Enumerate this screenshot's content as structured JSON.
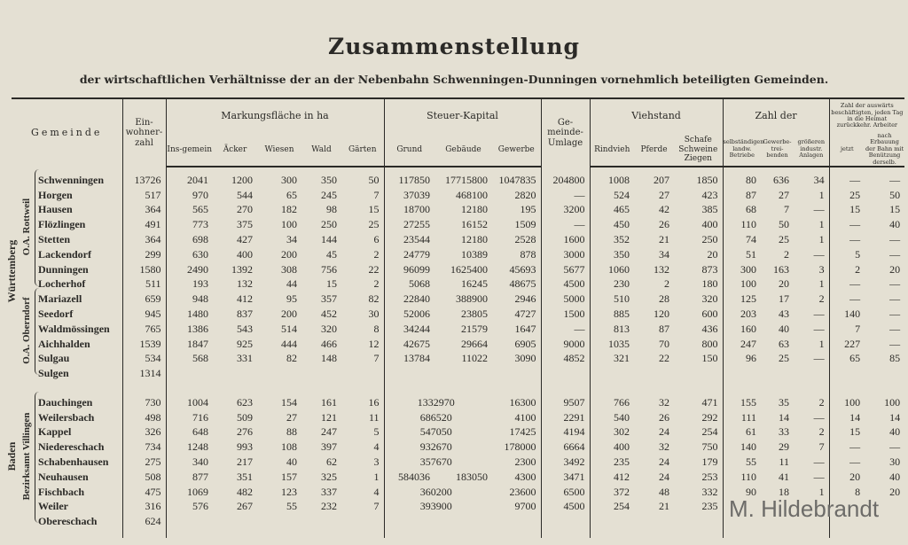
{
  "title": "Zusammenstellung",
  "subtitle": "der wirtschaftlichen Verhältnisse der an der Nebenbahn Schwenningen-Dunningen vornehmlich beteiligten Gemeinden.",
  "headers": {
    "gemeinde": "Gemeinde",
    "einwohner": "Ein-wohner-zahl",
    "markung": "Markungsfläche in ha",
    "insgemein": "Ins-gemein",
    "aecker": "Äcker",
    "wiesen": "Wiesen",
    "wald": "Wald",
    "gaerten": "Gärten",
    "steuer": "Steuer-Kapital",
    "grund": "Grund",
    "gebaeude": "Gebäude",
    "gewerbe": "Gewerbe",
    "umlage": "Ge-meinde-Umlage",
    "viehstand": "Viehstand",
    "rindvieh": "Rindvieh",
    "pferde": "Pferde",
    "schafe": "Schafe Schweine Ziegen",
    "zahl_der": "Zahl der",
    "selbst_landw": "selbständigen landw. Betriebe",
    "gewerbetreibenden": "Gewerbe-trei-benden",
    "anlagen": "größeren industr. Anlagen",
    "auswaerts": "Zahl der auswärts beschäftigten, jeden Tag in die Heimat zurückkehr. Arbeiter",
    "jetzt": "jetzt",
    "nach_bahn": "nach Erbauung der Bahn mit Benützung derselb."
  },
  "groups": {
    "wuerttemberg": "Württemberg",
    "oa_rottweil": "O.A. Rottweil",
    "oa_oberndorf": "O.A. Oberndorf",
    "baden": "Baden",
    "bezirksamt_villingen": "Bezirksamt Villingen"
  },
  "wuerttemberg_rows": [
    [
      "Schwenningen",
      "13726",
      "2041",
      "1200",
      "300",
      "350",
      "50",
      "117850",
      "17715800",
      "1047835",
      "204800",
      "1008",
      "207",
      "1850",
      "80",
      "636",
      "34",
      "—",
      "—"
    ],
    [
      "Horgen",
      "517",
      "970",
      "544",
      "65",
      "245",
      "7",
      "37039",
      "468100",
      "2820",
      "—",
      "524",
      "27",
      "423",
      "87",
      "27",
      "1",
      "25",
      "50"
    ],
    [
      "Hausen",
      "364",
      "565",
      "270",
      "182",
      "98",
      "15",
      "18700",
      "12180",
      "195",
      "3200",
      "465",
      "42",
      "385",
      "68",
      "7",
      "—",
      "15",
      "15"
    ],
    [
      "Flözlingen",
      "491",
      "773",
      "375",
      "100",
      "250",
      "25",
      "27255",
      "16152",
      "1509",
      "—",
      "450",
      "26",
      "400",
      "110",
      "50",
      "1",
      "—",
      "40"
    ],
    [
      "Stetten",
      "364",
      "698",
      "427",
      "34",
      "144",
      "6",
      "23544",
      "12180",
      "2528",
      "1600",
      "352",
      "21",
      "250",
      "74",
      "25",
      "1",
      "—",
      "—"
    ],
    [
      "Lackendorf",
      "299",
      "630",
      "400",
      "200",
      "45",
      "2",
      "24779",
      "10389",
      "878",
      "3000",
      "350",
      "34",
      "20",
      "51",
      "2",
      "—",
      "5",
      "—"
    ],
    [
      "Dunningen",
      "1580",
      "2490",
      "1392",
      "308",
      "756",
      "22",
      "96099",
      "1625400",
      "45693",
      "5677",
      "1060",
      "132",
      "873",
      "300",
      "163",
      "3",
      "2",
      "20"
    ],
    [
      "Locherhof",
      "511",
      "193",
      "132",
      "44",
      "15",
      "2",
      "5068",
      "16245",
      "48675",
      "4500",
      "230",
      "2",
      "180",
      "100",
      "20",
      "1",
      "—",
      "—"
    ],
    [
      "Mariazell",
      "659",
      "948",
      "412",
      "95",
      "357",
      "82",
      "22840",
      "388900",
      "2946",
      "5000",
      "510",
      "28",
      "320",
      "125",
      "17",
      "2",
      "—",
      "—"
    ],
    [
      "Seedorf",
      "945",
      "1480",
      "837",
      "200",
      "452",
      "30",
      "52006",
      "23805",
      "4727",
      "1500",
      "885",
      "120",
      "600",
      "203",
      "43",
      "—",
      "140",
      "—"
    ],
    [
      "Waldmössingen",
      "765",
      "1386",
      "543",
      "514",
      "320",
      "8",
      "34244",
      "21579",
      "1647",
      "—",
      "813",
      "87",
      "436",
      "160",
      "40",
      "—",
      "7",
      "—"
    ],
    [
      "Aichhalden",
      "1539",
      "1847",
      "925",
      "444",
      "466",
      "12",
      "42675",
      "29664",
      "6905",
      "9000",
      "1035",
      "70",
      "800",
      "247",
      "63",
      "1",
      "227",
      "—"
    ],
    [
      "Sulgau",
      "534",
      "568",
      "331",
      "82",
      "148",
      "7",
      "13784",
      "11022",
      "3090",
      "4852",
      "321",
      "22",
      "150",
      "96",
      "25",
      "—",
      "65",
      "85"
    ],
    [
      "Sulgen",
      "1314",
      "",
      "",
      "",
      "",
      "",
      "",
      "",
      "",
      "",
      "",
      "",
      "",
      "",
      "",
      "",
      "",
      ""
    ]
  ],
  "baden_rows": [
    [
      "Dauchingen",
      "730",
      "1004",
      "623",
      "154",
      "161",
      "16",
      null,
      "1332970",
      "16300",
      "9507",
      "766",
      "32",
      "471",
      "155",
      "35",
      "2",
      "100",
      "100"
    ],
    [
      "Weilersbach",
      "498",
      "716",
      "509",
      "27",
      "121",
      "11",
      null,
      "686520",
      "4100",
      "2291",
      "540",
      "26",
      "292",
      "111",
      "14",
      "—",
      "14",
      "14"
    ],
    [
      "Kappel",
      "326",
      "648",
      "276",
      "88",
      "247",
      "5",
      null,
      "547050",
      "17425",
      "4194",
      "302",
      "24",
      "254",
      "61",
      "33",
      "2",
      "15",
      "40"
    ],
    [
      "Niedereschach",
      "734",
      "1248",
      "993",
      "108",
      "397",
      "4",
      null,
      "932670",
      "178000",
      "6664",
      "400",
      "32",
      "750",
      "140",
      "29",
      "7",
      "—",
      "—"
    ],
    [
      "Schabenhausen",
      "275",
      "340",
      "217",
      "40",
      "62",
      "3",
      null,
      "357670",
      "2300",
      "3492",
      "235",
      "24",
      "179",
      "55",
      "11",
      "—",
      "—",
      "30"
    ],
    [
      "Neuhausen",
      "508",
      "877",
      "351",
      "157",
      "325",
      "1",
      "584036",
      "183050",
      "4300",
      "3471",
      "412",
      "24",
      "253",
      "110",
      "41",
      "—",
      "20",
      "40"
    ],
    [
      "Fischbach",
      "475",
      "1069",
      "482",
      "123",
      "337",
      "4",
      null,
      "360200",
      "23600",
      "6500",
      "372",
      "48",
      "332",
      "90",
      "18",
      "1",
      "8",
      "20"
    ],
    [
      "Weiler",
      "316",
      "576",
      "267",
      "55",
      "232",
      "7",
      null,
      "393900",
      "9700",
      "4500",
      "254",
      "21",
      "235",
      "",
      "",
      "",
      "",
      ""
    ],
    [
      "Obereschach",
      "624",
      "",
      "",
      "",
      "",
      "",
      "",
      "",
      "",
      "",
      "",
      "",
      "",
      "",
      "",
      "",
      "",
      ""
    ]
  ],
  "watermark": "M. Hildebrandt",
  "colors": {
    "paper": "#e4e0d3",
    "ink": "#2b2a27"
  }
}
